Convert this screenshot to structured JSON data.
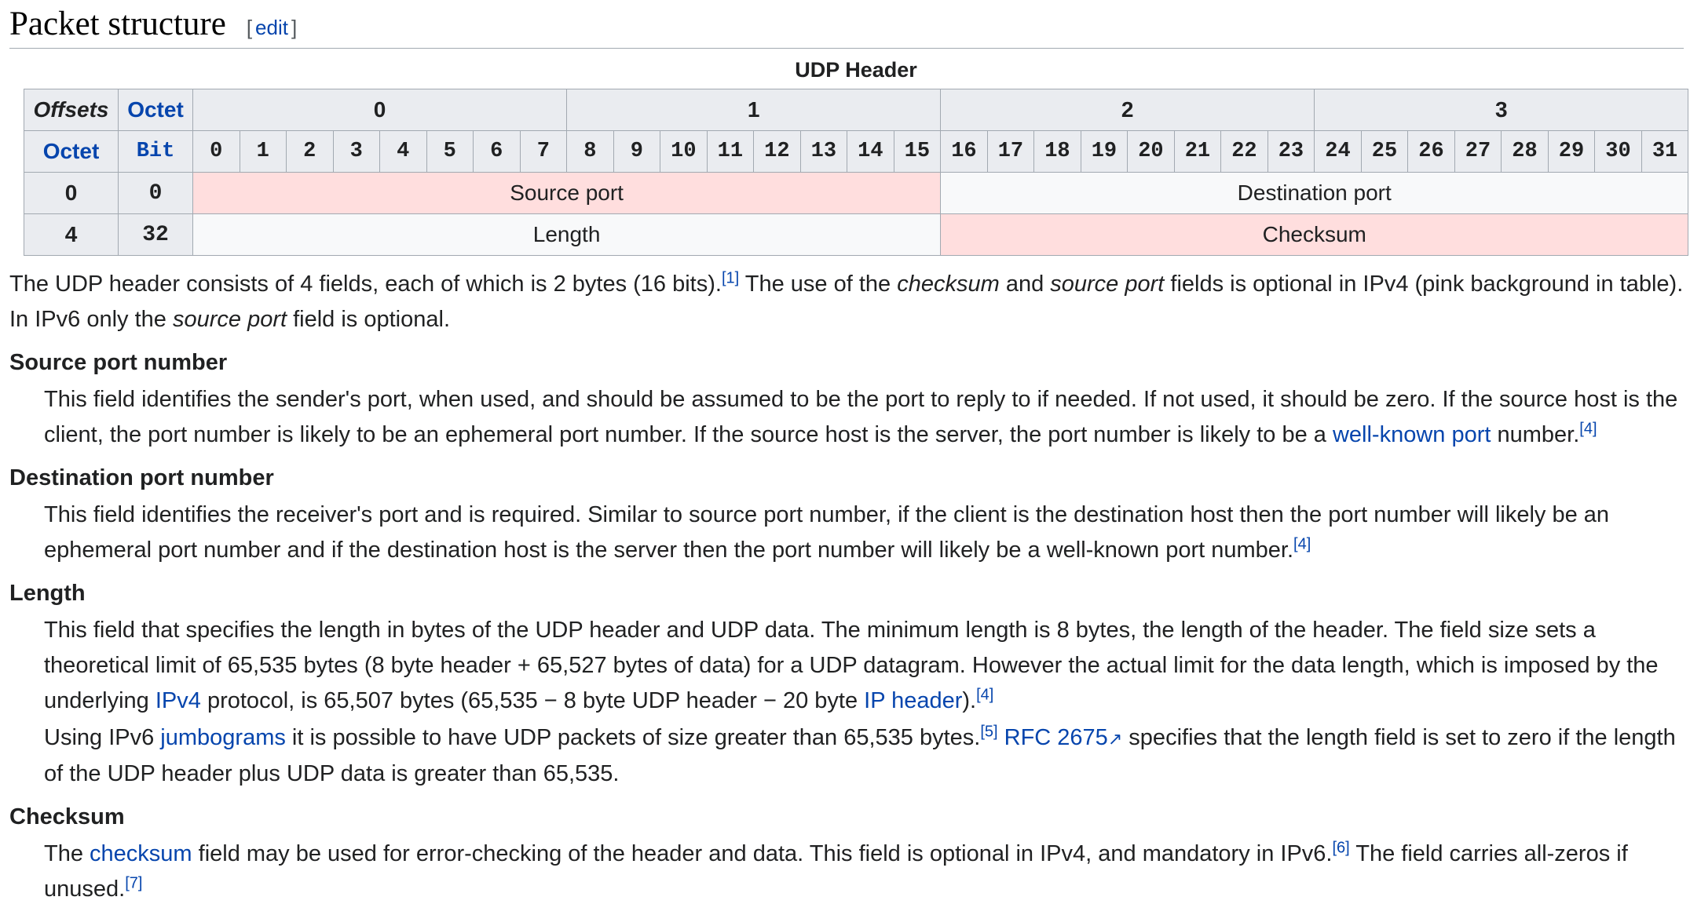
{
  "section": {
    "title": "Packet structure",
    "edit_open": "[",
    "edit_label": "edit",
    "edit_close": "]"
  },
  "table": {
    "caption": "UDP Header",
    "corner_offsets": "Offsets",
    "corner_octet_top": "Octet",
    "corner_octet_left": "Octet",
    "corner_bit": "Bit",
    "octets": [
      "0",
      "1",
      "2",
      "3"
    ],
    "bits": [
      "0",
      "1",
      "2",
      "3",
      "4",
      "5",
      "6",
      "7",
      "8",
      "9",
      "10",
      "11",
      "12",
      "13",
      "14",
      "15",
      "16",
      "17",
      "18",
      "19",
      "20",
      "21",
      "22",
      "23",
      "24",
      "25",
      "26",
      "27",
      "28",
      "29",
      "30",
      "31"
    ],
    "rows": [
      {
        "octet": "0",
        "bit": "0",
        "fields": [
          {
            "label": "Source port",
            "optional": true
          },
          {
            "label": "Destination port",
            "optional": false
          }
        ]
      },
      {
        "octet": "4",
        "bit": "32",
        "fields": [
          {
            "label": "Length",
            "optional": false
          },
          {
            "label": "Checksum",
            "optional": true
          }
        ]
      }
    ],
    "colors": {
      "optional_bg": "#ffdede",
      "required_bg": "#f8f9fa",
      "header_bg": "#eaecf0"
    }
  },
  "intro": {
    "t1": "The UDP header consists of 4 fields, each of which is 2 bytes (16 bits).",
    "ref1": "[1]",
    "t2": " The use of the ",
    "em1": "checksum",
    "t3": " and ",
    "em2": "source port",
    "t4": " fields is optional in IPv4 (pink background in table). In IPv6 only the ",
    "em3": "source port",
    "t5": " field is optional."
  },
  "source_port": {
    "term": "Source port number",
    "t1": "This field identifies the sender's port, when used, and should be assumed to be the port to reply to if needed. If not used, it should be zero. If the source host is the client, the port number is likely to be an ephemeral port number. If the source host is the server, the port number is likely to be a ",
    "link1": "well-known port",
    "t2": " number.",
    "ref": "[4]"
  },
  "dest_port": {
    "term": "Destination port number",
    "t1": "This field identifies the receiver's port and is required. Similar to source port number, if the client is the destination host then the port number will likely be an ephemeral port number and if the destination host is the server then the port number will likely be a well-known port number.",
    "ref": "[4]"
  },
  "length": {
    "term": "Length",
    "p1_t1": "This field that specifies the length in bytes of the UDP header and UDP data. The minimum length is 8 bytes, the length of the header. The field size sets a theoretical limit of 65,535 bytes (8 byte header + 65,527 bytes of data) for a UDP datagram. However the actual limit for the data length, which is imposed by the underlying ",
    "p1_link1": "IPv4",
    "p1_t2": " protocol, is 65,507 bytes (65,535 − 8 byte UDP header − 20 byte ",
    "p1_link2": "IP header",
    "p1_t3": ").",
    "p1_ref": "[4]",
    "p2_t1": "Using IPv6 ",
    "p2_link1": "jumbograms",
    "p2_t2": " it is possible to have UDP packets of size greater than 65,535 bytes.",
    "p2_ref": "[5]",
    "p2_link2": "RFC 2675",
    "p2_t3": " specifies that the length field is set to zero if the length of the UDP header plus UDP data is greater than 65,535."
  },
  "checksum": {
    "term": "Checksum",
    "t1": "The ",
    "link1": "checksum",
    "t2": " field may be used for error-checking of the header and data. This field is optional in IPv4, and mandatory in IPv6.",
    "ref1": "[6]",
    "t3": " The field carries all-zeros if unused.",
    "ref2": "[7]"
  }
}
